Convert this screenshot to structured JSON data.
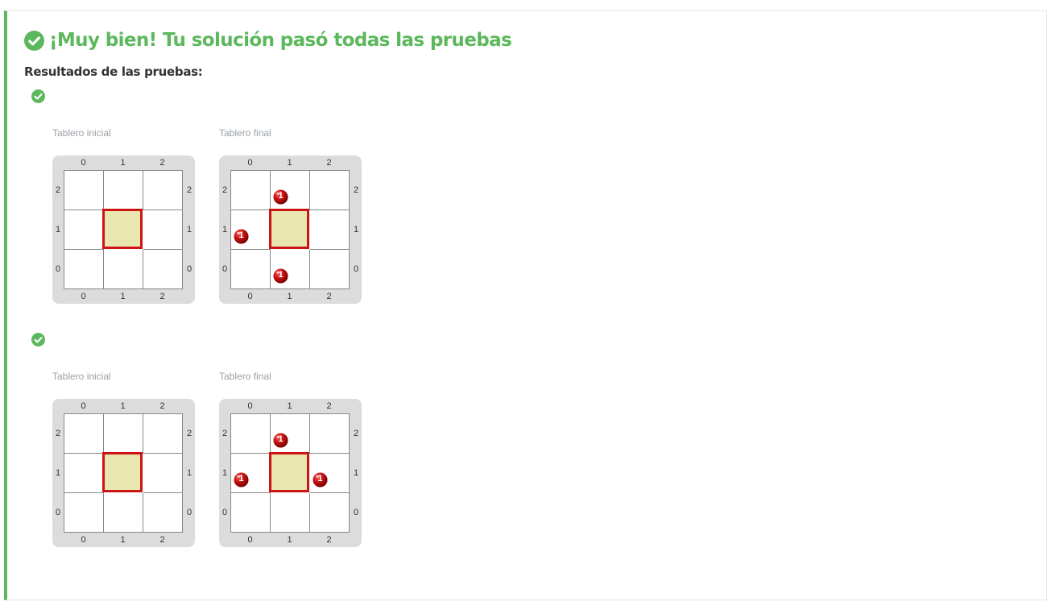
{
  "header": {
    "title": "¡Muy bien! Tu solución pasó todas las pruebas",
    "success_icon": "check-circle-icon",
    "success_color": "#5cb85c"
  },
  "results": {
    "heading": "Resultados de las pruebas:",
    "tests": [
      {
        "status": "passed",
        "initial": {
          "label": "Tablero inicial",
          "head": [
            1,
            1
          ],
          "balls": []
        },
        "final": {
          "label": "Tablero final",
          "head": [
            1,
            1
          ],
          "balls": [
            {
              "x": 1,
              "y": 2,
              "color": "red",
              "count": "1"
            },
            {
              "x": 0,
              "y": 1,
              "color": "red",
              "count": "1"
            },
            {
              "x": 1,
              "y": 0,
              "color": "red",
              "count": "1"
            }
          ]
        }
      },
      {
        "status": "passed",
        "initial": {
          "label": "Tablero inicial",
          "head": [
            1,
            1
          ],
          "balls": []
        },
        "final": {
          "label": "Tablero final",
          "head": [
            1,
            1
          ],
          "balls": [
            {
              "x": 1,
              "y": 2,
              "color": "red",
              "count": "1"
            },
            {
              "x": 0,
              "y": 1,
              "color": "red",
              "count": "1"
            },
            {
              "x": 2,
              "y": 1,
              "color": "red",
              "count": "1"
            }
          ]
        }
      }
    ]
  },
  "board_axes": {
    "columns": [
      "0",
      "1",
      "2"
    ],
    "rows": [
      "2",
      "1",
      "0"
    ]
  },
  "colors": {
    "accent": "#5cb85c",
    "head_fill": "#e8e7b0",
    "head_border": "#cc1414",
    "ball": "#cc1414"
  }
}
